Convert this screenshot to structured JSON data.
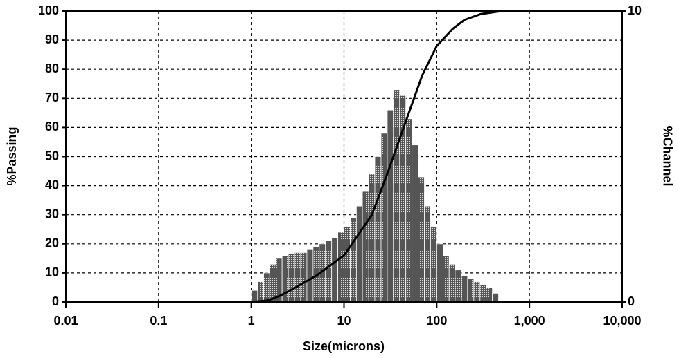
{
  "chart_data": {
    "type": "histogram",
    "x_label": "Size(microns)",
    "y_label": "%Passing",
    "y2_label": "%Channel",
    "xscale": "log",
    "xlim": [
      0.01,
      10000
    ],
    "xticks": [
      0.01,
      0.1,
      1,
      10,
      100,
      {
        "value": 1000,
        "label": "1,000"
      },
      {
        "value": 10000,
        "label": "10,000"
      }
    ],
    "ylim": [
      0,
      100
    ],
    "yticks": [
      0,
      10,
      20,
      30,
      40,
      50,
      60,
      70,
      80,
      90,
      100
    ],
    "y2lim": [
      0,
      10
    ],
    "y2ticks": [
      0,
      10
    ],
    "grid": true,
    "bins": [
      1,
      1.17,
      1.36,
      1.58,
      1.85,
      2.15,
      2.51,
      2.93,
      3.41,
      3.98,
      4.64,
      5.41,
      6.31,
      7.36,
      8.58,
      10,
      11.7,
      13.6,
      15.8,
      18.5,
      21.5,
      25.1,
      29.3,
      34.1,
      39.8,
      46.4,
      54.1,
      63.1,
      73.6,
      85.8,
      100,
      117,
      136,
      158,
      185,
      215,
      251,
      293,
      341,
      398,
      464
    ],
    "counts": [
      0.4,
      0.7,
      1.0,
      1.3,
      1.5,
      1.6,
      1.65,
      1.7,
      1.7,
      1.8,
      1.9,
      2.0,
      2.1,
      2.2,
      2.4,
      2.6,
      2.9,
      3.3,
      3.8,
      4.4,
      5.0,
      5.8,
      6.6,
      7.3,
      7.1,
      6.3,
      5.4,
      4.3,
      3.3,
      2.6,
      2.0,
      1.6,
      1.3,
      1.1,
      0.9,
      0.8,
      0.7,
      0.6,
      0.5,
      0.3
    ],
    "counts_axis": "y2",
    "bar_color": "#7a7a7a",
    "line": {
      "color": "#000000",
      "x": [
        0.03,
        1,
        1.5,
        2,
        3,
        5,
        10,
        20,
        30,
        50,
        70,
        100,
        150,
        200,
        300,
        500
      ],
      "values": [
        0,
        0,
        0.5,
        2,
        5,
        9,
        16,
        30,
        45,
        65,
        78,
        88,
        94,
        97,
        99,
        100
      ]
    }
  }
}
